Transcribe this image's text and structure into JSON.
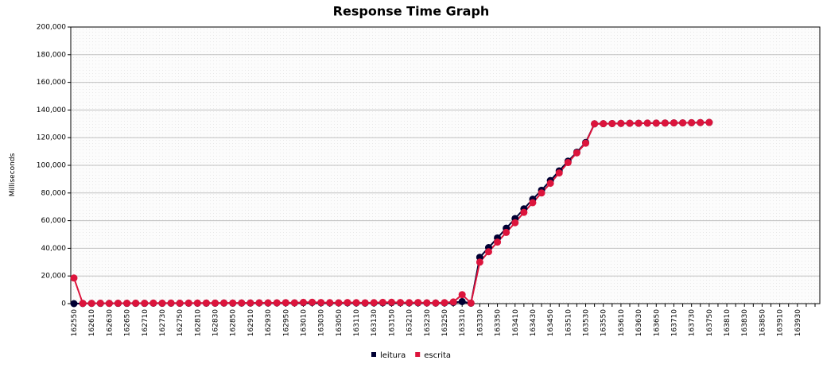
{
  "chart_data": {
    "type": "line",
    "title": "Response Time Graph",
    "y_label": "Milliseconds",
    "categories": [
      "162550",
      null,
      "162610",
      null,
      "162630",
      null,
      "162650",
      null,
      "162710",
      null,
      "162730",
      null,
      "162750",
      null,
      "162810",
      null,
      "162830",
      null,
      "162850",
      null,
      "162910",
      null,
      "162930",
      null,
      "162950",
      null,
      "163010",
      null,
      "163030",
      null,
      "163050",
      null,
      "163110",
      null,
      "163130",
      null,
      "163150",
      null,
      "163210",
      null,
      "163230",
      null,
      "163250",
      null,
      "163310",
      null,
      "163330",
      null,
      "163350",
      null,
      "163410",
      null,
      "163430",
      null,
      "163450",
      null,
      "163510",
      null,
      "163530",
      null,
      "163550",
      null,
      "163610",
      null,
      "163630",
      null,
      "163650",
      null,
      "163710",
      null,
      "163730",
      null,
      "163750",
      null,
      "163810",
      null,
      "163830",
      null,
      "163850",
      null,
      "163910",
      null,
      "163930",
      null,
      null
    ],
    "series": [
      {
        "name": "leitura",
        "color": "#000033",
        "values": [
          0,
          100,
          150,
          200,
          150,
          200,
          200,
          250,
          200,
          300,
          250,
          300,
          250,
          300,
          300,
          350,
          300,
          400,
          350,
          400,
          400,
          500,
          450,
          500,
          600,
          500,
          700,
          800,
          600,
          500,
          500,
          600,
          500,
          400,
          500,
          600,
          700,
          600,
          500,
          600,
          500,
          400,
          500,
          800,
          1500,
          300,
          33500,
          40500,
          47500,
          54500,
          61500,
          68500,
          75500,
          82000,
          89000,
          96000,
          103000,
          109500,
          116500,
          130000,
          130100,
          130200,
          130300,
          130400,
          130400,
          130500,
          130500,
          130600,
          130700,
          130700,
          130800,
          130900,
          131000,
          null,
          null,
          null,
          null,
          null,
          null,
          null,
          null,
          null,
          null,
          null,
          null
        ]
      },
      {
        "name": "escrita",
        "color": "#dc143c",
        "values": [
          18500,
          200,
          250,
          300,
          200,
          300,
          300,
          350,
          300,
          400,
          350,
          400,
          350,
          400,
          400,
          450,
          400,
          500,
          450,
          500,
          500,
          600,
          550,
          600,
          700,
          600,
          900,
          1000,
          800,
          700,
          600,
          800,
          700,
          600,
          700,
          900,
          1000,
          800,
          700,
          800,
          600,
          500,
          700,
          1200,
          6500,
          400,
          30000,
          37500,
          44500,
          51500,
          58500,
          66000,
          73000,
          80000,
          87000,
          94500,
          102000,
          109000,
          116000,
          130000,
          130100,
          130200,
          130300,
          130400,
          130400,
          130500,
          130500,
          130600,
          130700,
          130700,
          130800,
          130900,
          131000,
          null,
          null,
          null,
          null,
          null,
          null,
          null,
          null,
          null,
          null,
          null,
          null
        ]
      }
    ],
    "ylim": [
      0,
      200000
    ],
    "yticks": [
      0,
      {
        "value": 20000,
        "label": "20,000"
      },
      {
        "value": 40000,
        "label": "40,000"
      },
      {
        "value": 60000,
        "label": "60,000"
      },
      {
        "value": 80000,
        "label": "80,000"
      },
      {
        "value": 100000,
        "label": "100,000"
      },
      {
        "value": 120000,
        "label": "120,000"
      },
      {
        "value": 140000,
        "label": "140,000"
      },
      {
        "value": 160000,
        "label": "160,000"
      },
      {
        "value": 180000,
        "label": "180,000"
      },
      {
        "value": 200000,
        "label": "200,000"
      }
    ],
    "grid": true,
    "legend": "bottom"
  }
}
